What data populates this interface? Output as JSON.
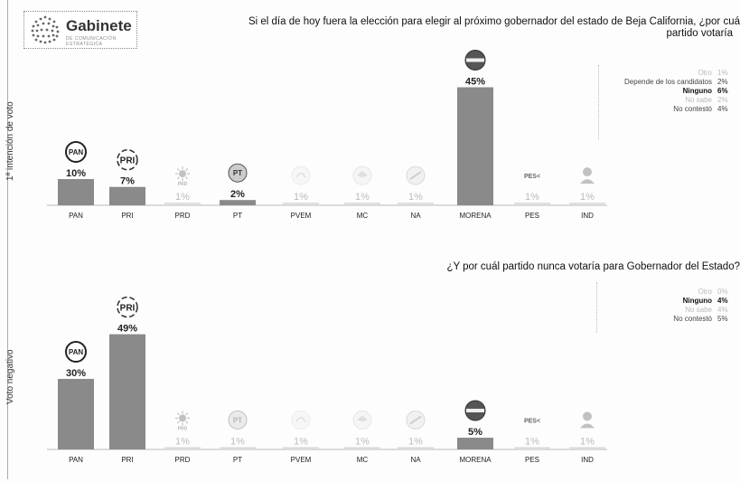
{
  "brand": {
    "name": "Gabinete",
    "tagline": "DE COMUNICACIÓN ESTRATÉGICA"
  },
  "title_line1": "Si el día de hoy fuera la elección para elegir al próximo gobernador del estado de Beja California, ¿por cuá",
  "title_line2": "partido votaría",
  "subtitle": "¿Y por cuál partido nunca votaría para Gobernador del Estado?",
  "legend1": [
    {
      "label": "Otro",
      "value": "1%",
      "style": "faint"
    },
    {
      "label": "Depende de los candidatos",
      "value": "2%",
      "style": "normal"
    },
    {
      "label": "Ninguno",
      "value": "6%",
      "style": "strong"
    },
    {
      "label": "No sabe",
      "value": "2%",
      "style": "faint"
    },
    {
      "label": "No contestó",
      "value": "4%",
      "style": "normal"
    }
  ],
  "legend2": [
    {
      "label": "Otro",
      "value": "0%",
      "style": "faint"
    },
    {
      "label": "Ninguno",
      "value": "4%",
      "style": "strong"
    },
    {
      "label": "No sabe",
      "value": "4%",
      "style": "faint"
    },
    {
      "label": "No contestó",
      "value": "5%",
      "style": "normal"
    }
  ],
  "colors": {
    "bar": "#8a8a8a",
    "axis": "#777"
  },
  "chart_data": [
    {
      "type": "bar",
      "ylabel": "1ª intención de voto",
      "categories": [
        "PAN",
        "PRI",
        "PRD",
        "PT",
        "PVEM",
        "MC",
        "NA",
        "MORENA",
        "PES",
        "IND"
      ],
      "values": [
        10,
        7,
        1,
        2,
        1,
        1,
        1,
        45,
        1,
        1
      ],
      "labels": [
        "10%",
        "7%",
        "1%",
        "2%",
        "1%",
        "1%",
        "1%",
        "45%",
        "1%",
        "1%"
      ]
    },
    {
      "type": "bar",
      "ylabel": "Voto negativo",
      "categories": [
        "PAN",
        "PRI",
        "PRD",
        "PT",
        "PVEM",
        "MC",
        "NA",
        "MORENA",
        "PES",
        "IND"
      ],
      "values": [
        30,
        49,
        1,
        1,
        1,
        1,
        1,
        5,
        1,
        1
      ],
      "labels": [
        "30%",
        "49%",
        "1%",
        "1%",
        "1%",
        "1%",
        "1%",
        "5%",
        "1%",
        "1%"
      ]
    }
  ],
  "icons": [
    "pan-logo-icon",
    "pri-logo-icon",
    "prd-sun-icon",
    "pt-star-icon",
    "pvem-toucan-icon",
    "mc-eagle-icon",
    "na-logo-icon",
    "morena-logo-icon",
    "pes-logo-icon",
    "independent-candidate-icon"
  ]
}
